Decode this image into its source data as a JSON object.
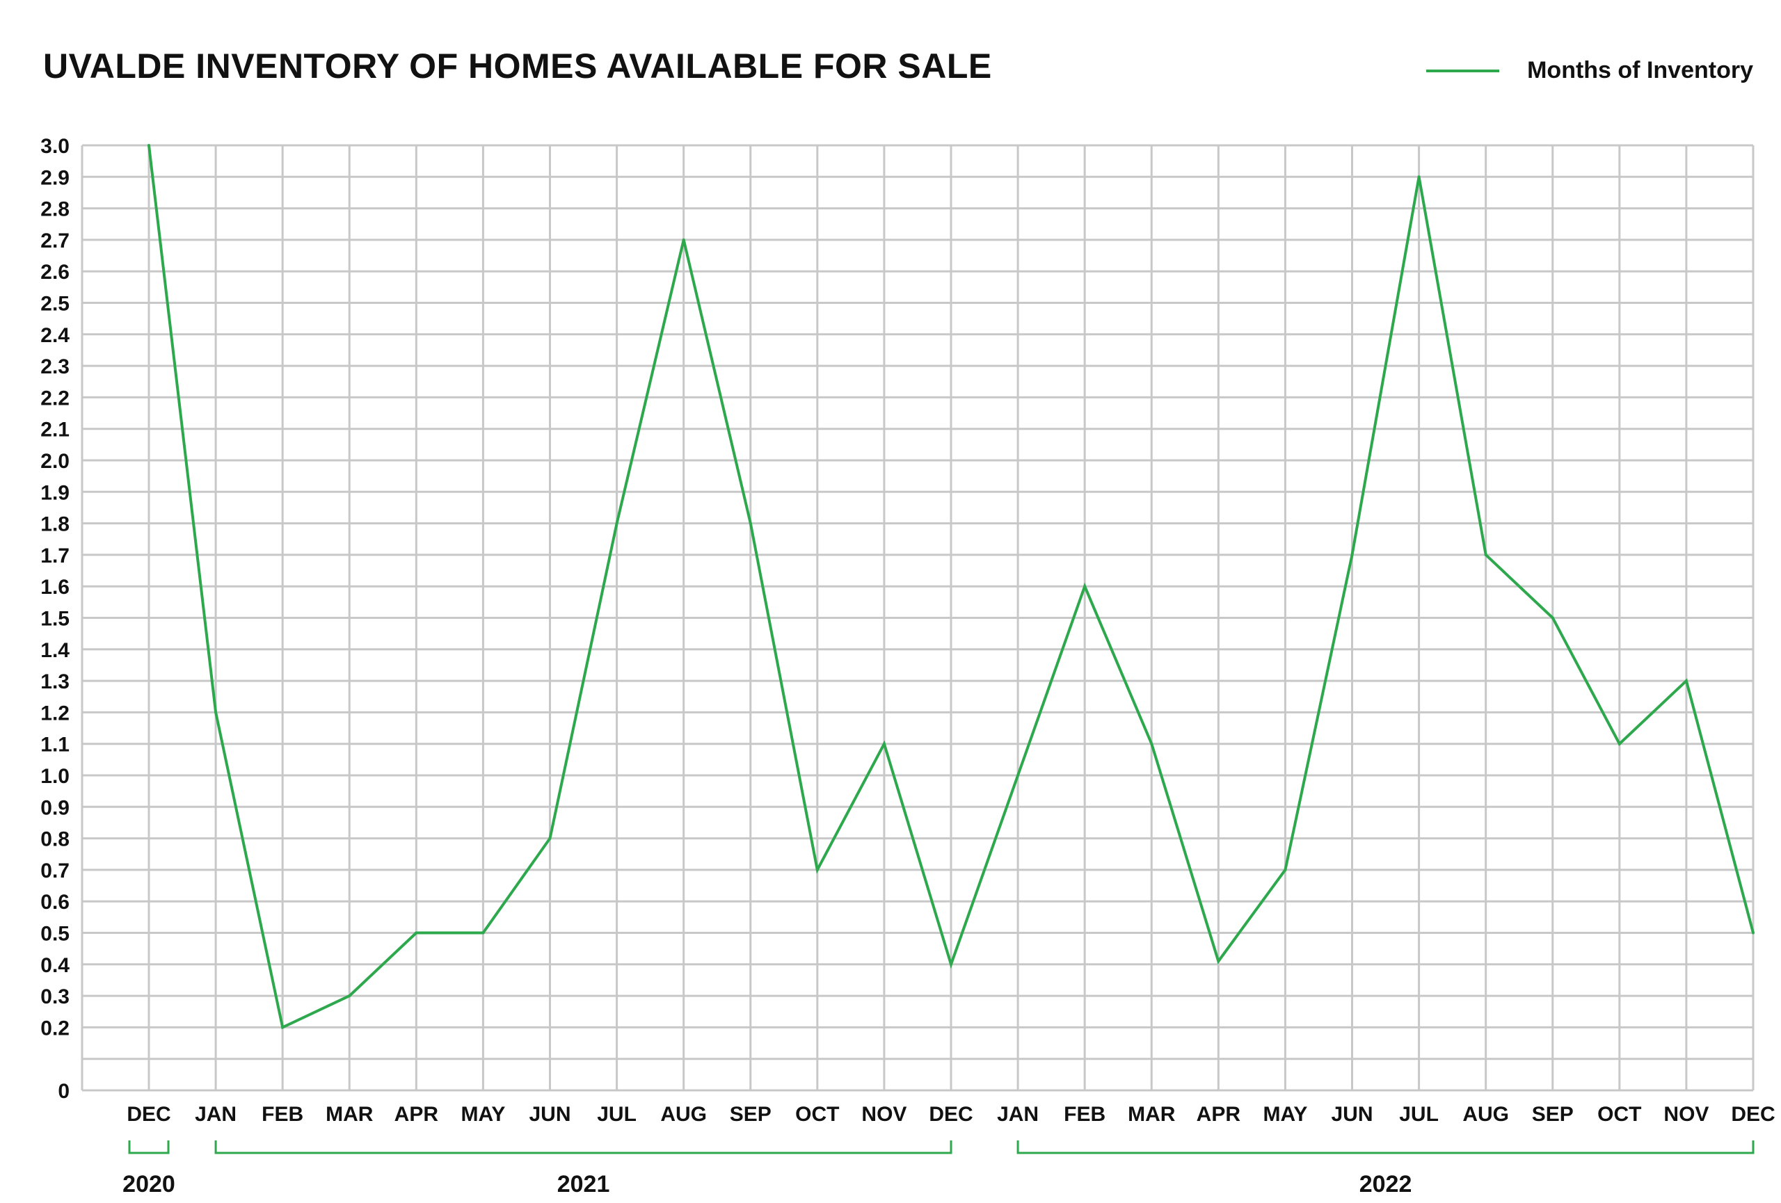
{
  "chart_data": {
    "type": "line",
    "title": "UVALDE INVENTORY OF HOMES AVAILABLE FOR SALE",
    "categories": [
      "DEC",
      "JAN",
      "FEB",
      "MAR",
      "APR",
      "MAY",
      "JUN",
      "JUL",
      "AUG",
      "SEP",
      "OCT",
      "NOV",
      "DEC",
      "JAN",
      "FEB",
      "MAR",
      "APR",
      "MAY",
      "JUN",
      "JUL",
      "AUG",
      "SEP",
      "OCT",
      "NOV",
      "DEC"
    ],
    "series": [
      {
        "name": "Months of Inventory",
        "color": "#2ea84d",
        "values": [
          3.0,
          1.2,
          0.2,
          0.3,
          0.5,
          0.5,
          0.8,
          1.8,
          2.7,
          1.8,
          0.7,
          1.1,
          0.4,
          1.0,
          1.6,
          1.1,
          0.41,
          0.7,
          1.7,
          2.9,
          1.7,
          1.5,
          1.1,
          1.3,
          0.5
        ]
      }
    ],
    "ylim": [
      0,
      3.0
    ],
    "y_ticks": [
      "0",
      "0.2",
      "0.3",
      "0.4",
      "0.5",
      "0.6",
      "0.7",
      "0.8",
      "0.9",
      "1.0",
      "1.1",
      "1.2",
      "1.3",
      "1.4",
      "1.5",
      "1.6",
      "1.7",
      "1.8",
      "1.9",
      "2.0",
      "2.1",
      "2.2",
      "2.3",
      "2.4",
      "2.5",
      "2.6",
      "2.7",
      "2.8",
      "2.9",
      "3.0"
    ],
    "year_groups": [
      {
        "label": "2020",
        "from": 0,
        "to": 0
      },
      {
        "label": "2021",
        "from": 1,
        "to": 12
      },
      {
        "label": "2022",
        "from": 13,
        "to": 24
      }
    ],
    "grid": true,
    "legend_position": "top-right",
    "grid_color": "#c8c8c8",
    "bracket_color": "#2ea84d"
  }
}
